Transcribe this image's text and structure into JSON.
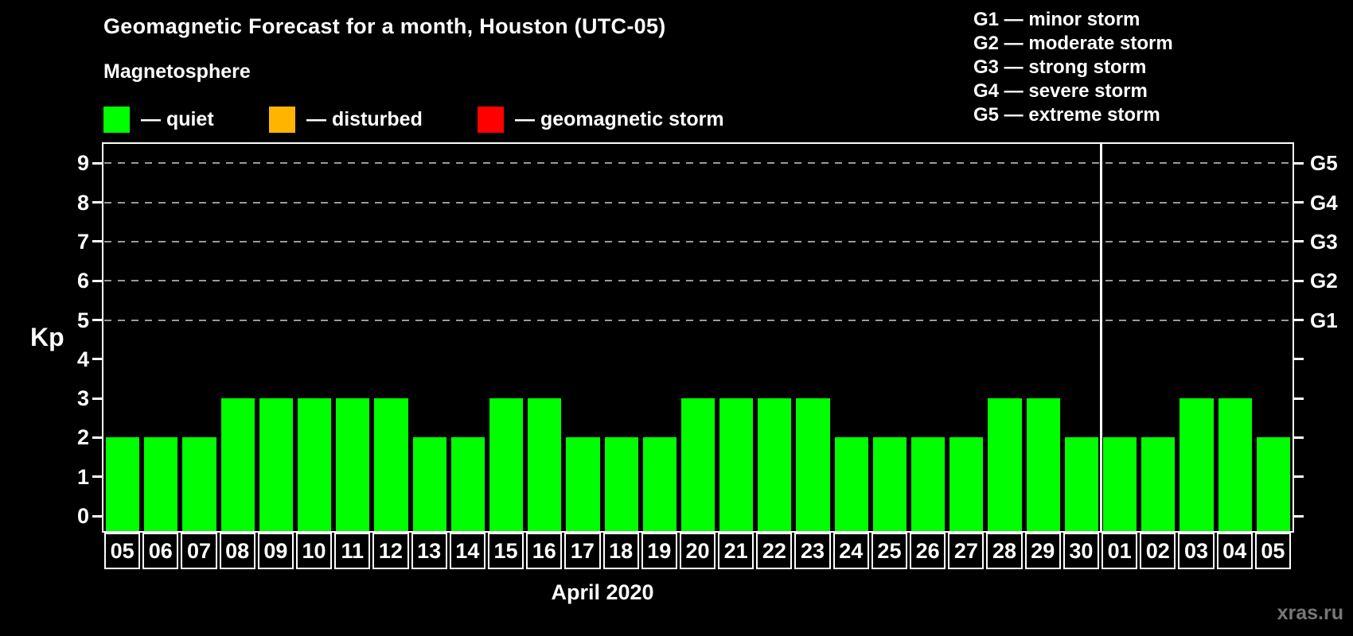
{
  "header": {
    "title": "Geomagnetic Forecast for a month, Houston (UTC-05)",
    "subtitle": "Magnetosphere"
  },
  "legend": {
    "items": [
      {
        "name": "quiet",
        "label": "— quiet",
        "color": "#00FF00"
      },
      {
        "name": "disturbed",
        "label": "— disturbed",
        "color": "#FFB400"
      },
      {
        "name": "geomagnetic-storm",
        "label": "— geomagnetic storm",
        "color": "#FF0000"
      }
    ]
  },
  "g_scale_legend": {
    "lines": [
      "G1 — minor storm",
      "G2 — moderate storm",
      "G3 — strong storm",
      "G4 — severe storm",
      "G5 — extreme storm"
    ]
  },
  "chart_data": {
    "type": "bar",
    "title": "Geomagnetic Forecast for a month, Houston (UTC-05)",
    "subtitle": "Magnetosphere",
    "ylabel": "Kp",
    "xlabel": "April 2020",
    "ylim": [
      0,
      9.5
    ],
    "yticks": [
      0,
      1,
      2,
      3,
      4,
      5,
      6,
      7,
      8,
      9
    ],
    "grid_kp": [
      5,
      6,
      7,
      8,
      9
    ],
    "grid_style": "dashed horizontal gray lines at Kp 5–9",
    "right_axis_ticks": [
      {
        "label": "G1",
        "kp": 5
      },
      {
        "label": "G2",
        "kp": 6
      },
      {
        "label": "G3",
        "kp": 7
      },
      {
        "label": "G4",
        "kp": 8
      },
      {
        "label": "G5",
        "kp": 9
      }
    ],
    "categories": [
      "05",
      "06",
      "07",
      "08",
      "09",
      "10",
      "11",
      "12",
      "13",
      "14",
      "15",
      "16",
      "17",
      "18",
      "19",
      "20",
      "21",
      "22",
      "23",
      "24",
      "25",
      "26",
      "27",
      "28",
      "29",
      "30",
      "01",
      "02",
      "03",
      "04",
      "05"
    ],
    "values": [
      2,
      2,
      2,
      3,
      3,
      3,
      3,
      3,
      2,
      2,
      3,
      3,
      2,
      2,
      2,
      3,
      3,
      3,
      3,
      2,
      2,
      2,
      2,
      3,
      3,
      2,
      2,
      2,
      3,
      3,
      2
    ],
    "separator_after_index": 26,
    "bar_color": "#00FF00",
    "legend_position": "top-left"
  },
  "watermark": "xras.ru",
  "colors": {
    "background": "#000000",
    "axis": "#FFFFFF",
    "grid": "#9A9A9A",
    "quiet": "#00FF00",
    "disturbed": "#FFB400",
    "storm": "#FF0000",
    "watermark": "#777777"
  }
}
